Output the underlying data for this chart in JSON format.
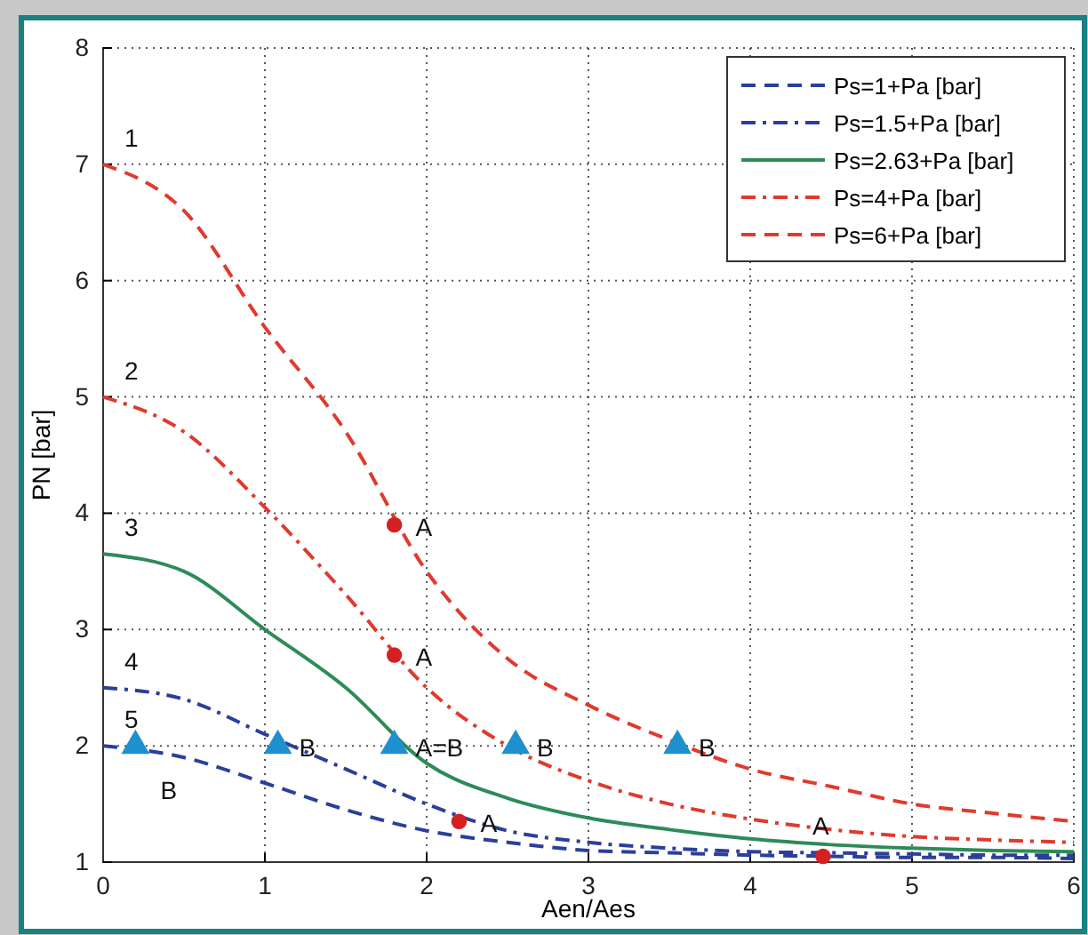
{
  "chart_data": {
    "type": "line",
    "xlabel": "Aen/Aes",
    "ylabel": "PN [bar]",
    "xlim": [
      0,
      6
    ],
    "ylim": [
      1,
      8
    ],
    "xticks": [
      0,
      1,
      2,
      3,
      4,
      5,
      6
    ],
    "yticks": [
      1,
      2,
      3,
      4,
      5,
      6,
      7,
      8
    ],
    "grid": true,
    "legend": "top right",
    "x": [
      0,
      0.5,
      1,
      1.5,
      2,
      2.5,
      3,
      3.5,
      4,
      4.5,
      5,
      5.5,
      6
    ],
    "series": [
      {
        "name": "Ps=1+Pa [bar]",
        "color": "#2b3f9a",
        "line_style": "dashed",
        "values": [
          2.0,
          1.9,
          1.68,
          1.45,
          1.27,
          1.17,
          1.1,
          1.08,
          1.06,
          1.05,
          1.04,
          1.04,
          1.03
        ]
      },
      {
        "name": "Ps=1.5+Pa [bar]",
        "color": "#2b3f9a",
        "line_style": "dashdot",
        "values": [
          2.5,
          2.4,
          2.1,
          1.8,
          1.5,
          1.27,
          1.17,
          1.12,
          1.09,
          1.08,
          1.07,
          1.06,
          1.06
        ]
      },
      {
        "name": "Ps=2.63+Pa [bar]",
        "color": "#2e8b57",
        "line_style": "solid",
        "values": [
          3.65,
          3.5,
          3.0,
          2.5,
          1.85,
          1.55,
          1.38,
          1.28,
          1.2,
          1.15,
          1.12,
          1.1,
          1.09
        ]
      },
      {
        "name": "Ps=4+Pa [bar]",
        "color": "#e03a2e",
        "line_style": "dashdot",
        "values": [
          5.0,
          4.7,
          4.05,
          3.3,
          2.5,
          2.0,
          1.7,
          1.5,
          1.37,
          1.28,
          1.22,
          1.19,
          1.17
        ]
      },
      {
        "name": "Ps=6+Pa [bar]",
        "color": "#e03a2e",
        "line_style": "dashed",
        "values": [
          7.0,
          6.6,
          5.6,
          4.7,
          3.5,
          2.75,
          2.35,
          2.05,
          1.8,
          1.65,
          1.5,
          1.42,
          1.35
        ]
      },
      {
        "type": "scatter",
        "marker": "circle",
        "color": "#d42020",
        "x": [
          1.8,
          1.8,
          2.2,
          4.45
        ],
        "values": [
          3.9,
          2.78,
          1.35,
          1.05
        ]
      },
      {
        "type": "scatter",
        "marker": "triangle",
        "color": "#1e90d0",
        "x": [
          0.2,
          1.08,
          1.8,
          2.55,
          3.55
        ],
        "values": [
          2,
          2,
          2,
          2,
          2
        ]
      }
    ],
    "annotations": [
      {
        "text": "1",
        "x": 0,
        "y": 7.0
      },
      {
        "text": "2",
        "x": 0,
        "y": 5.0
      },
      {
        "text": "3",
        "x": 0,
        "y": 3.65
      },
      {
        "text": "4",
        "x": 0,
        "y": 2.5
      },
      {
        "text": "5",
        "x": 0,
        "y": 2.0
      },
      {
        "text": "A",
        "x": 1.8,
        "y": 3.9
      },
      {
        "text": "A",
        "x": 1.8,
        "y": 2.78
      },
      {
        "text": "A",
        "x": 2.2,
        "y": 1.35
      },
      {
        "text": "A",
        "x": 4.45,
        "y": 1.05
      },
      {
        "text": "B",
        "x": 1.08,
        "y": 2
      },
      {
        "text": "A=B",
        "x": 1.8,
        "y": 2
      },
      {
        "text": "B",
        "x": 2.55,
        "y": 2
      },
      {
        "text": "B",
        "x": 3.55,
        "y": 2
      },
      {
        "text": "B",
        "x": 0.2,
        "y": 2
      }
    ]
  }
}
